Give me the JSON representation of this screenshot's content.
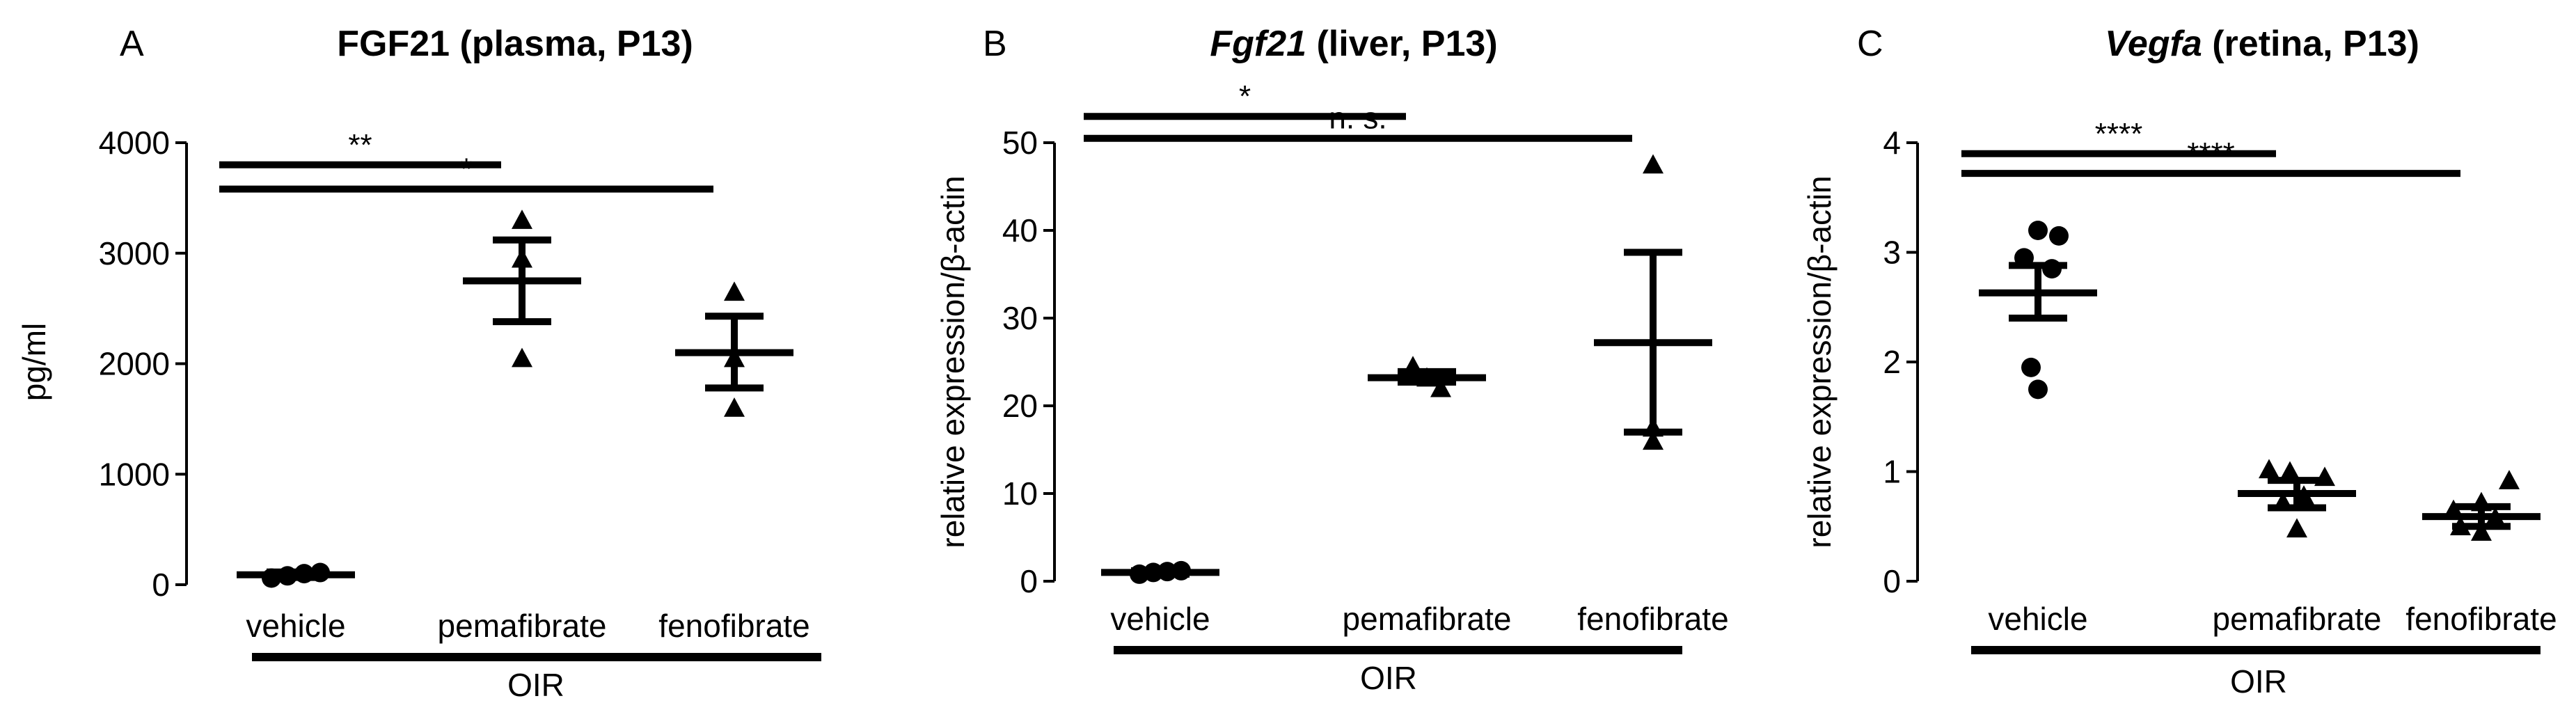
{
  "chart_data": [
    {
      "type": "scatter",
      "panel_label": "A",
      "title": "FGF21 (plasma, P13)",
      "title_italic": "",
      "title_rest": "",
      "ylabel": "pg/ml",
      "ylim": [
        0,
        4000
      ],
      "yticks": [
        "0",
        "1000",
        "2000",
        "3000",
        "4000"
      ],
      "categories": [
        "vehicle",
        "pemafibrate",
        "fenofibrate"
      ],
      "group_label": "OIR",
      "groups": [
        {
          "name": "vehicle",
          "marker": "circle",
          "points": [
            60,
            80,
            100,
            110
          ],
          "mean": 90,
          "sem_low": 65,
          "sem_high": 115
        },
        {
          "name": "pemafibrate",
          "marker": "triangle",
          "points": [
            3300,
            2950,
            2050
          ],
          "mean": 2750,
          "sem_low": 2380,
          "sem_high": 3120
        },
        {
          "name": "fenofibrate",
          "marker": "triangle",
          "points": [
            2650,
            2050,
            1600
          ],
          "mean": 2100,
          "sem_low": 1780,
          "sem_high": 2430
        }
      ],
      "significance": [
        {
          "label": "**",
          "from": "vehicle",
          "to": "pemafibrate",
          "y": 3800
        },
        {
          "label": "*",
          "from": "vehicle",
          "to": "fenofibrate",
          "y": 3580
        }
      ]
    },
    {
      "type": "scatter",
      "panel_label": "B",
      "title": "",
      "title_italic": "Fgf21",
      "title_rest": " (liver, P13)",
      "ylabel": "relative  expression/β-actin",
      "ylim": [
        0,
        50
      ],
      "yticks": [
        "0",
        "10",
        "20",
        "30",
        "40",
        "50"
      ],
      "categories": [
        "vehicle",
        "pemafibrate",
        "fenofibrate"
      ],
      "group_label": "OIR",
      "groups": [
        {
          "name": "vehicle",
          "marker": "circle",
          "points": [
            0.8,
            1.0,
            1.1,
            1.2
          ],
          "mean": 1.0,
          "sem_low": 0.8,
          "sem_high": 1.2
        },
        {
          "name": "pemafibrate",
          "marker": "triangle",
          "points": [
            24.5,
            23.2,
            22.0
          ],
          "mean": 23.2,
          "sem_low": 22.7,
          "sem_high": 23.9
        },
        {
          "name": "fenofibrate",
          "marker": "triangle",
          "points": [
            47.5,
            17.5,
            16.0
          ],
          "mean": 27.2,
          "sem_low": 17.0,
          "sem_high": 37.5
        }
      ],
      "significance": [
        {
          "label": "*",
          "from": "vehicle",
          "to": "pemafibrate",
          "y": 53.0
        },
        {
          "label": "n. s.",
          "from": "vehicle",
          "to": "fenofibrate",
          "y": 50.5
        }
      ]
    },
    {
      "type": "scatter",
      "panel_label": "C",
      "title": "",
      "title_italic": "Vegfa",
      "title_rest": " (retina, P13)",
      "ylabel": "relative  expression/β-actin",
      "ylim": [
        0,
        4
      ],
      "yticks": [
        "0",
        "1",
        "2",
        "3",
        "4"
      ],
      "categories": [
        "vehicle",
        "pemafibrate",
        "fenofibrate"
      ],
      "group_label": "OIR",
      "groups": [
        {
          "name": "vehicle",
          "marker": "circle",
          "points": [
            3.2,
            3.15,
            2.95,
            2.85,
            1.95,
            1.75
          ],
          "mean": 2.63,
          "sem_low": 2.4,
          "sem_high": 2.88
        },
        {
          "name": "pemafibrate",
          "marker": "triangle",
          "points": [
            1.02,
            1.0,
            0.95,
            0.78,
            0.72,
            0.48
          ],
          "mean": 0.8,
          "sem_low": 0.67,
          "sem_high": 0.92
        },
        {
          "name": "fenofibrate",
          "marker": "triangle",
          "points": [
            0.92,
            0.72,
            0.65,
            0.58,
            0.5,
            0.45
          ],
          "mean": 0.59,
          "sem_low": 0.5,
          "sem_high": 0.68
        }
      ],
      "significance": [
        {
          "label": "****",
          "from": "vehicle",
          "to": "pemafibrate",
          "y": 3.9
        },
        {
          "label": "****",
          "from": "vehicle",
          "to": "fenofibrate",
          "y": 3.72
        }
      ]
    }
  ]
}
